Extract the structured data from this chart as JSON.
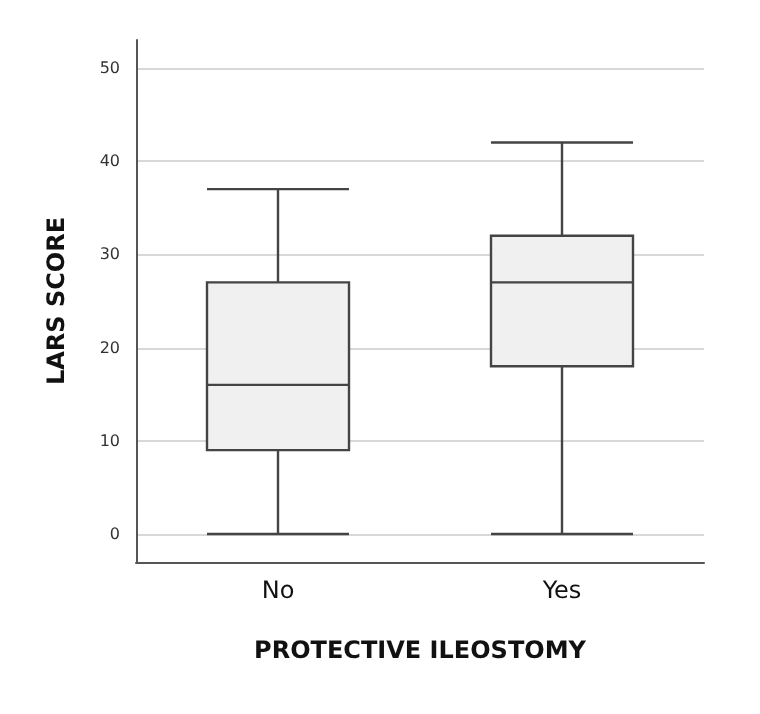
{
  "chart_data": {
    "type": "box",
    "xlabel": "PROTECTIVE ILEOSTOMY",
    "ylabel": "LARS SCORE",
    "categories": [
      "No",
      "Yes"
    ],
    "boxes": [
      {
        "low": 0,
        "q1": 9,
        "median": 16,
        "q3": 27,
        "high": 37
      },
      {
        "low": 0,
        "q1": 18,
        "median": 27,
        "q3": 32,
        "high": 42
      }
    ],
    "color": "#f0f0f0",
    "ylim": [
      -3,
      53
    ],
    "yticks": [
      0,
      10,
      20,
      30,
      40,
      50
    ],
    "grid": "y"
  }
}
